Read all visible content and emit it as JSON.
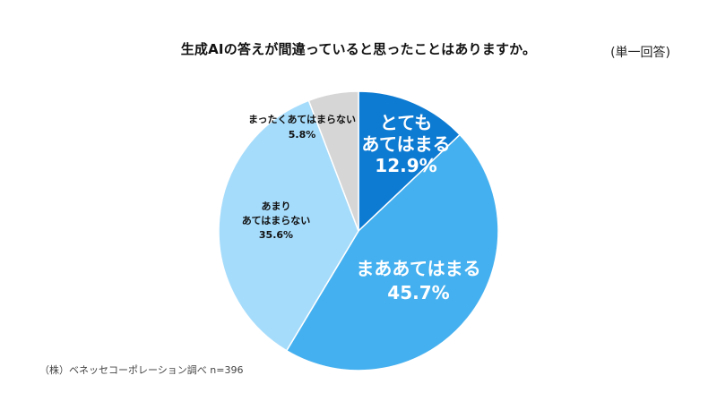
{
  "chart_data": {
    "type": "pie",
    "title": "生成AIの答えが間違っていると思ったことはありますか。",
    "subtitle": "(単一回答)",
    "source": "（株）ベネッセコーポレーション調べ n=396",
    "slices": [
      {
        "label_lines": [
          "とても",
          "あてはまる"
        ],
        "value": 12.9,
        "value_label": "12.9%",
        "color": "#0e7bd2"
      },
      {
        "label_lines": [
          "まああてはまる"
        ],
        "value": 45.7,
        "value_label": "45.7%",
        "color": "#45b0ef"
      },
      {
        "label_lines": [
          "あまり",
          "あてはまらない"
        ],
        "value": 35.6,
        "value_label": "35.6%",
        "color": "#a6dcfb"
      },
      {
        "label_lines": [
          "まったくあてはまらない"
        ],
        "value": 5.8,
        "value_label": "5.8%",
        "color": "#d6d6d6"
      }
    ]
  }
}
